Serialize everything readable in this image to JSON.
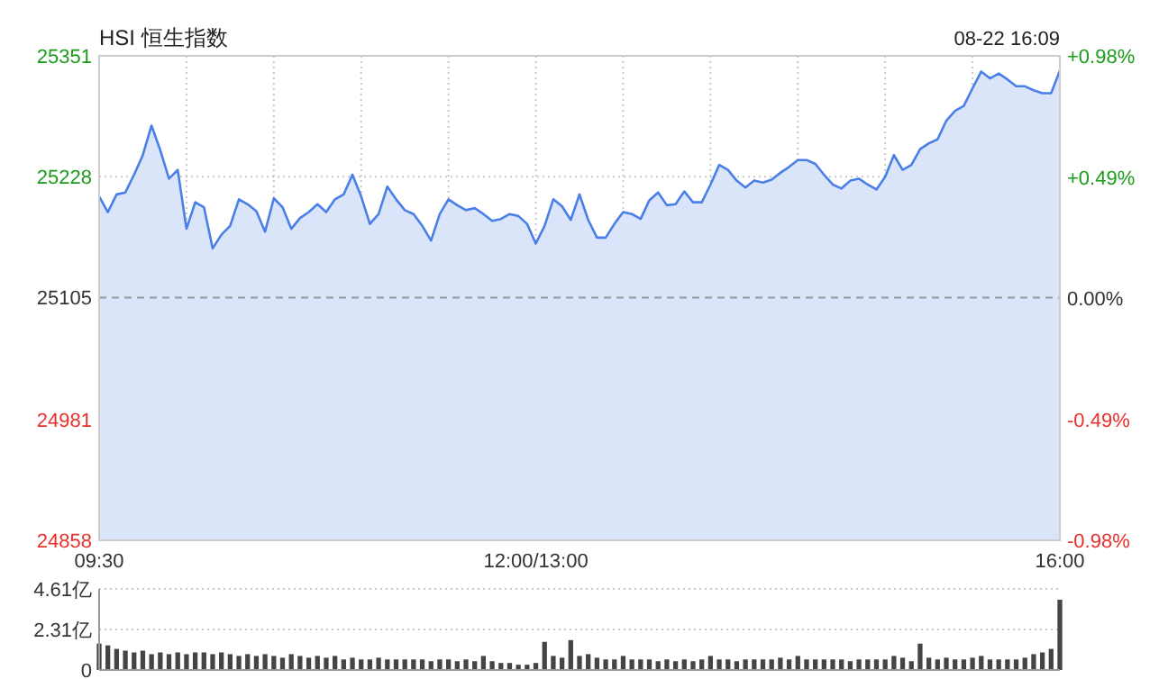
{
  "chart_data": [
    {
      "type": "area",
      "title": "HSI 恒生指数",
      "annotations": [
        "08-22 16:09"
      ],
      "categories": [
        "09:30",
        null,
        null,
        null,
        null,
        null,
        null,
        null,
        null,
        null,
        null,
        null,
        null,
        null,
        null,
        null,
        null,
        null,
        null,
        null,
        null,
        null,
        null,
        null,
        null,
        null,
        null,
        null,
        null,
        null,
        null,
        null,
        null,
        null,
        null,
        null,
        null,
        null,
        null,
        null,
        null,
        null,
        null,
        null,
        null,
        null,
        null,
        null,
        null,
        null,
        "12:00/13:00",
        null,
        null,
        null,
        null,
        null,
        null,
        null,
        null,
        null,
        null,
        null,
        null,
        null,
        null,
        null,
        null,
        null,
        null,
        null,
        null,
        null,
        null,
        null,
        null,
        null,
        null,
        null,
        null,
        null,
        null,
        null,
        null,
        null,
        null,
        null,
        null,
        null,
        null,
        null,
        null,
        null,
        null,
        null,
        null,
        null,
        null,
        null,
        null,
        null,
        null,
        null,
        null,
        null,
        null,
        null,
        null,
        null,
        null,
        null,
        "16:00"
      ],
      "series": [
        {
          "color": "#4a7fe8",
          "values": [
            25208,
            25192,
            25210,
            25212,
            25230,
            25250,
            25280,
            25255,
            25226,
            25235,
            25175,
            25202,
            25197,
            25155,
            25169,
            25178,
            25205,
            25200,
            25193,
            25172,
            25206,
            25197,
            25175,
            25186,
            25192,
            25200,
            25192,
            25205,
            25210,
            25230,
            25208,
            25180,
            25190,
            25218,
            25205,
            25194,
            25190,
            25178,
            25163,
            25190,
            25205,
            25199,
            25194,
            25196,
            25190,
            25183,
            25185,
            25190,
            25188,
            25180,
            25160,
            25178,
            25205,
            25198,
            25184,
            25210,
            25184,
            25166,
            25166,
            25180,
            25192,
            25190,
            25185,
            25204,
            25212,
            25199,
            25200,
            25213,
            25202,
            25202,
            25220,
            25240,
            25235,
            25224,
            25217,
            25224,
            25222,
            25225,
            25232,
            25238,
            25245,
            25245,
            25241,
            25230,
            25220,
            25216,
            25224,
            25226,
            25220,
            25215,
            25228,
            25250,
            25235,
            25240,
            25256,
            25262,
            25266,
            25285,
            25295,
            25300,
            25318,
            25335,
            25328,
            25333,
            25327,
            25320,
            25320,
            25316,
            25313,
            25313,
            25336
          ]
        }
      ],
      "ylim": [
        24858,
        25351
      ],
      "yticks": [
        24858,
        24981,
        25105,
        25228,
        25351
      ],
      "y2lim": [
        -0.98,
        0.98
      ],
      "y2ticks": [
        {
          "value": -0.98,
          "label": "-0.98%"
        },
        {
          "value": -0.49,
          "label": "-0.49%"
        },
        {
          "value": 0,
          "label": "0.00%"
        },
        {
          "value": 0.49,
          "label": "+0.49%"
        },
        {
          "value": 0.98,
          "label": "+0.98%"
        }
      ],
      "ref_lines": [
        {
          "axis": "y",
          "value": 25105,
          "color": "#999999",
          "line_style": "dashed"
        }
      ],
      "grid": true
    },
    {
      "type": "bar",
      "color": "#444444",
      "categories": [
        null,
        null,
        null,
        null,
        null,
        null,
        null,
        null,
        null,
        null,
        null,
        null,
        null,
        null,
        null,
        null,
        null,
        null,
        null,
        null,
        null,
        null,
        null,
        null,
        null,
        null,
        null,
        null,
        null,
        null,
        null,
        null,
        null,
        null,
        null,
        null,
        null,
        null,
        null,
        null,
        null,
        null,
        null,
        null,
        null,
        null,
        null,
        null,
        null,
        null,
        null,
        null,
        null,
        null,
        null,
        null,
        null,
        null,
        null,
        null,
        null,
        null,
        null,
        null,
        null,
        null,
        null,
        null,
        null,
        null,
        null,
        null,
        null,
        null,
        null,
        null,
        null,
        null,
        null,
        null,
        null,
        null,
        null,
        null,
        null,
        null,
        null,
        null,
        null,
        null,
        null,
        null,
        null,
        null,
        null,
        null,
        null,
        null,
        null,
        null,
        null,
        null,
        null,
        null,
        null,
        null,
        null,
        null,
        null,
        null,
        null
      ],
      "values": [
        1.5,
        1.4,
        1.2,
        1.1,
        1.0,
        1.1,
        0.9,
        1.0,
        0.9,
        1.0,
        0.9,
        1.0,
        1.0,
        0.9,
        1.0,
        0.9,
        0.8,
        0.9,
        0.8,
        0.9,
        0.8,
        0.7,
        0.9,
        0.8,
        0.7,
        0.8,
        0.7,
        0.8,
        0.6,
        0.7,
        0.6,
        0.6,
        0.7,
        0.6,
        0.6,
        0.6,
        0.6,
        0.6,
        0.5,
        0.6,
        0.6,
        0.5,
        0.6,
        0.5,
        0.8,
        0.5,
        0.4,
        0.4,
        0.3,
        0.3,
        0.4,
        1.6,
        0.8,
        0.7,
        1.7,
        0.8,
        0.9,
        0.7,
        0.6,
        0.6,
        0.8,
        0.6,
        0.6,
        0.6,
        0.5,
        0.6,
        0.5,
        0.6,
        0.5,
        0.6,
        0.8,
        0.6,
        0.6,
        0.5,
        0.6,
        0.6,
        0.6,
        0.6,
        0.7,
        0.6,
        0.8,
        0.6,
        0.6,
        0.6,
        0.6,
        0.6,
        0.5,
        0.6,
        0.6,
        0.6,
        0.6,
        0.8,
        0.7,
        0.5,
        1.5,
        0.7,
        0.6,
        0.7,
        0.6,
        0.6,
        0.7,
        0.8,
        0.6,
        0.6,
        0.6,
        0.6,
        0.7,
        0.9,
        1.0,
        1.2,
        4.0
      ],
      "ylim": [
        0,
        4.61
      ],
      "yticks": [
        0,
        {
          "value": 2.31,
          "label": "2.31亿"
        },
        {
          "value": 4.61,
          "label": "4.61亿"
        }
      ],
      "tick_labels": "y",
      "grid": "y"
    }
  ]
}
